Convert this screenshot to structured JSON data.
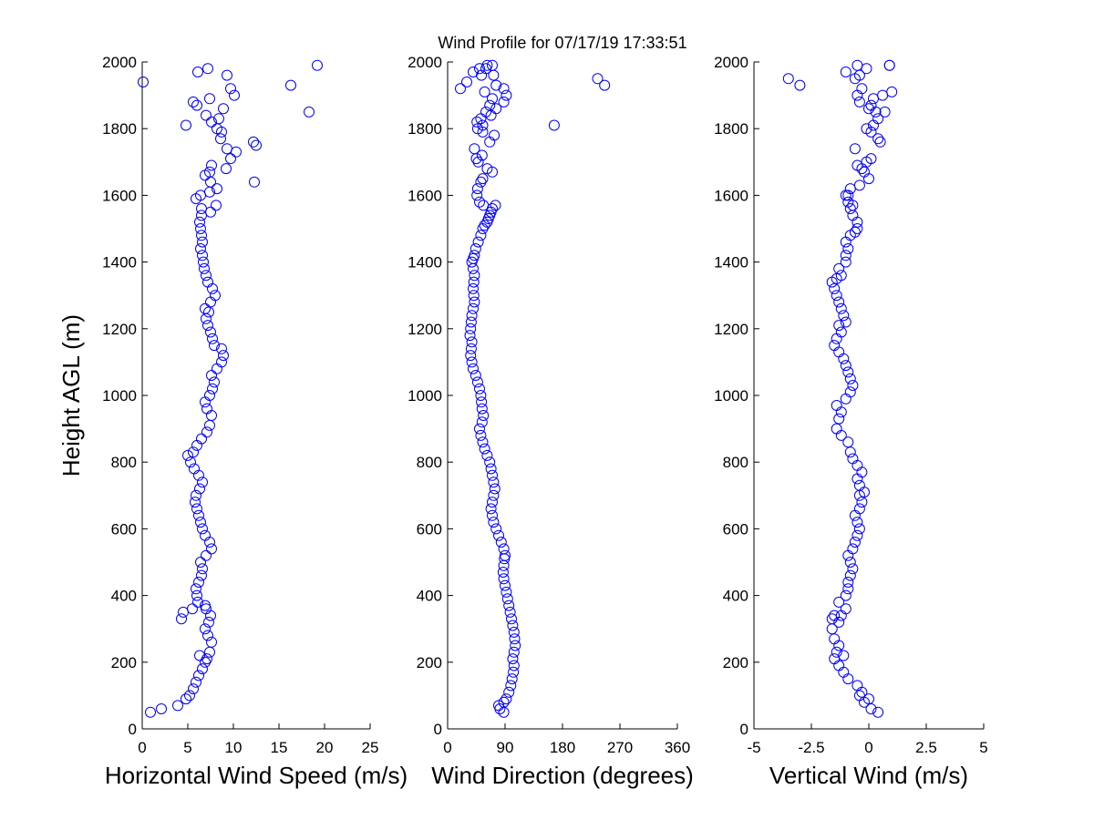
{
  "figure": {
    "title": "Wind Profile for  07/17/19 17:33:51",
    "marker_color": "#0000ff"
  },
  "chart_data": [
    {
      "type": "scatter",
      "title": "Wind Profile for  07/17/19 17:33:51",
      "xlabel": "Horizontal Wind Speed (m/s)",
      "ylabel": "Height AGL (m)",
      "xlim": [
        0,
        25
      ],
      "ylim": [
        0,
        2000
      ],
      "xticks": [
        "0",
        "5",
        "10",
        "15",
        "20",
        "25"
      ],
      "yticks": [
        "0",
        "200",
        "400",
        "600",
        "800",
        "1000",
        "1200",
        "1400",
        "1600",
        "1800",
        "2000"
      ],
      "grid": false,
      "series": [
        {
          "x": [
            0.9,
            2.1,
            3.9,
            4.8,
            5.2,
            5.6,
            5.9,
            6.2,
            6.6,
            6.9,
            7.1,
            7.4,
            7.6,
            7.2,
            6.3,
            6.9,
            7.3,
            7.5,
            7.0,
            6.9,
            4.3,
            4.5,
            5.5,
            6.1,
            6.0,
            5.9,
            6.2,
            6.5,
            6.6,
            6.4,
            7.0,
            7.6,
            7.4,
            6.9,
            6.6,
            6.4,
            6.2,
            6.0,
            5.8,
            5.9,
            6.3,
            6.6,
            6.2,
            5.7,
            5.3,
            5.0,
            5.6,
            6.0,
            6.5,
            7.1,
            7.4,
            7.6,
            7.1,
            6.9,
            7.4,
            7.7,
            7.9,
            7.6,
            8.2,
            8.7,
            8.9,
            8.7,
            7.9,
            7.7,
            7.5,
            7.2,
            7.0,
            7.3,
            6.9,
            7.5,
            8.0,
            7.7,
            7.2,
            7.0,
            6.8,
            6.7,
            6.6,
            6.4,
            6.6,
            6.5,
            6.4,
            6.3,
            6.5,
            7.5,
            6.5,
            5.9,
            6.4,
            8.1,
            7.4,
            8.2,
            7.5,
            6.9,
            7.4,
            7.6,
            9.2,
            12.3,
            9.7,
            10.3,
            9.3,
            12.5,
            12.2,
            8.6,
            8.7,
            8.2,
            4.8,
            7.6,
            8.4,
            7.0,
            8.9,
            6.0,
            5.6,
            7.4,
            18.3,
            10.1,
            9.7,
            16.3,
            0.1,
            9.3,
            6.1,
            7.2,
            19.2
          ],
          "y": [
            50,
            60,
            70,
            90,
            100,
            120,
            140,
            160,
            180,
            200,
            210,
            230,
            260,
            280,
            220,
            300,
            320,
            340,
            360,
            370,
            330,
            350,
            360,
            380,
            400,
            420,
            440,
            460,
            480,
            500,
            520,
            540,
            560,
            580,
            600,
            620,
            640,
            660,
            680,
            700,
            720,
            740,
            760,
            780,
            800,
            820,
            830,
            850,
            870,
            890,
            910,
            940,
            960,
            980,
            1000,
            1020,
            1040,
            1060,
            1080,
            1100,
            1120,
            1140,
            1150,
            1170,
            1190,
            1210,
            1230,
            1250,
            1260,
            1280,
            1300,
            1320,
            1340,
            1360,
            1380,
            1400,
            1420,
            1440,
            1460,
            1480,
            1500,
            1520,
            1540,
            1550,
            1560,
            1590,
            1600,
            1570,
            1610,
            1620,
            1640,
            1660,
            1670,
            1690,
            1680,
            1640,
            1710,
            1730,
            1740,
            1750,
            1760,
            1770,
            1790,
            1800,
            1810,
            1820,
            1830,
            1840,
            1860,
            1870,
            1880,
            1890,
            1850,
            1900,
            1920,
            1930,
            1940,
            1960,
            1970,
            1980,
            1990
          ]
        }
      ]
    },
    {
      "type": "scatter",
      "xlabel": "Wind Direction (degrees)",
      "ylabel": "",
      "xlim": [
        0,
        360
      ],
      "ylim": [
        0,
        2000
      ],
      "xticks": [
        "0",
        "90",
        "180",
        "270",
        "360"
      ],
      "yticks": [
        "0",
        "200",
        "400",
        "600",
        "800",
        "1000",
        "1200",
        "1400",
        "1600",
        "1800",
        "2000"
      ],
      "grid": false,
      "series": [
        {
          "x": [
            88,
            82,
            80,
            88,
            92,
            96,
            99,
            101,
            103,
            104,
            102,
            104,
            106,
            105,
            104,
            102,
            100,
            98,
            96,
            94,
            92,
            90,
            88,
            87,
            88,
            89,
            90,
            88,
            84,
            80,
            76,
            72,
            70,
            68,
            70,
            72,
            74,
            72,
            70,
            68,
            66,
            62,
            58,
            55,
            52,
            50,
            54,
            56,
            54,
            53,
            52,
            50,
            47,
            44,
            40,
            38,
            36,
            37,
            38,
            35,
            36,
            37,
            38,
            40,
            42,
            41,
            40,
            41,
            42,
            40,
            38,
            40,
            42,
            44,
            48,
            52,
            55,
            58,
            62,
            64,
            66,
            68,
            70,
            56,
            50,
            46,
            47,
            52,
            75,
            55,
            70,
            62,
            48,
            45,
            54,
            42,
            66,
            73,
            55,
            47,
            55,
            46,
            52,
            167,
            68,
            60,
            76,
            66,
            88,
            70,
            92,
            58,
            88,
            76,
            20,
            235,
            30,
            246,
            40,
            60,
            70,
            53,
            62,
            72,
            50
          ],
          "y": [
            50,
            60,
            70,
            80,
            90,
            110,
            130,
            150,
            170,
            190,
            210,
            230,
            250,
            270,
            290,
            310,
            330,
            350,
            370,
            390,
            410,
            430,
            450,
            470,
            490,
            510,
            520,
            540,
            560,
            580,
            600,
            620,
            640,
            660,
            680,
            700,
            720,
            740,
            760,
            780,
            800,
            820,
            840,
            860,
            880,
            900,
            920,
            940,
            960,
            980,
            1000,
            1020,
            1040,
            1060,
            1080,
            1100,
            1120,
            1140,
            1160,
            1180,
            1200,
            1220,
            1240,
            1260,
            1280,
            1300,
            1320,
            1340,
            1360,
            1380,
            1400,
            1410,
            1420,
            1440,
            1460,
            1480,
            1500,
            1510,
            1520,
            1530,
            1540,
            1550,
            1560,
            1570,
            1580,
            1600,
            1620,
            1640,
            1570,
            1650,
            1670,
            1680,
            1700,
            1710,
            1720,
            1740,
            1760,
            1780,
            1790,
            1800,
            1810,
            1820,
            1830,
            1810,
            1840,
            1850,
            1860,
            1870,
            1880,
            1890,
            1900,
            1910,
            1920,
            1930,
            1920,
            1950,
            1940,
            1930,
            1970,
            1980,
            1990,
            1960,
            1990,
            1960,
            1980
          ]
        }
      ]
    },
    {
      "type": "scatter",
      "xlabel": "Vertical Wind (m/s)",
      "ylabel": "",
      "xlim": [
        -5,
        5
      ],
      "ylim": [
        0,
        2000
      ],
      "xticks": [
        "-5",
        "-2.5",
        "0",
        "2.5",
        "5"
      ],
      "yticks": [
        "0",
        "200",
        "400",
        "600",
        "800",
        "1000",
        "1200",
        "1400",
        "1600",
        "1800",
        "2000"
      ],
      "grid": false,
      "series": [
        {
          "x": [
            0.4,
            0.1,
            0,
            -0.2,
            -0.4,
            -0.3,
            -0.5,
            -0.9,
            -1.1,
            -1.3,
            -1.5,
            -1.4,
            -1.3,
            -1.5,
            -1.1,
            -1.6,
            -1.3,
            -1.2,
            -1.0,
            -1.3,
            -1.5,
            -1.6,
            -1.0,
            -0.9,
            -0.9,
            -0.8,
            -0.7,
            -0.8,
            -0.9,
            -0.7,
            -0.6,
            -0.5,
            -0.4,
            -0.5,
            -0.6,
            -0.4,
            -0.3,
            -0.4,
            -0.2,
            -0.4,
            -0.5,
            -0.3,
            -0.5,
            -0.7,
            -0.8,
            -0.9,
            -1.2,
            -1.4,
            -1.3,
            -1.2,
            -1.4,
            -1.0,
            -0.8,
            -0.7,
            -0.8,
            -0.9,
            -1.0,
            -1.1,
            -1.3,
            -1.5,
            -1.4,
            -1.2,
            -1.3,
            -1.0,
            -1.1,
            -1.2,
            -1.3,
            -1.4,
            -1.5,
            -1.6,
            -1.4,
            -1.2,
            -1.3,
            -1.0,
            -1.0,
            -0.9,
            -1.0,
            -0.8,
            -0.6,
            -0.5,
            -0.5,
            -0.7,
            -0.8,
            -0.9,
            -1.0,
            -0.7,
            -0.9,
            -0.8,
            -0.4,
            0,
            -0.2,
            -0.5,
            -0.3,
            -0.1,
            0.1,
            -0.6,
            0.5,
            0.4,
            0.1,
            0.2,
            0.4,
            -0.1,
            0.3,
            0,
            0.1,
            0.2,
            -0.5,
            -0.4,
            -0.3,
            -0.6,
            0.9,
            1.0,
            0.6,
            0.7,
            -0.4,
            -3.5,
            -3.0,
            -0.1,
            -1.0,
            -0.5,
            0.9
          ],
          "y": [
            50,
            60,
            90,
            80,
            100,
            110,
            130,
            150,
            170,
            190,
            210,
            230,
            250,
            270,
            220,
            300,
            320,
            340,
            360,
            380,
            340,
            330,
            400,
            420,
            440,
            460,
            480,
            500,
            520,
            540,
            560,
            580,
            600,
            620,
            640,
            660,
            680,
            700,
            710,
            730,
            750,
            770,
            790,
            810,
            830,
            860,
            880,
            900,
            930,
            950,
            970,
            990,
            1010,
            1030,
            1050,
            1070,
            1090,
            1110,
            1130,
            1150,
            1170,
            1190,
            1210,
            1220,
            1240,
            1260,
            1280,
            1300,
            1320,
            1340,
            1350,
            1360,
            1380,
            1400,
            1420,
            1440,
            1460,
            1480,
            1490,
            1500,
            1520,
            1540,
            1560,
            1580,
            1600,
            1570,
            1600,
            1620,
            1630,
            1650,
            1670,
            1690,
            1680,
            1700,
            1710,
            1740,
            1760,
            1770,
            1790,
            1810,
            1830,
            1800,
            1850,
            1860,
            1870,
            1890,
            1900,
            1880,
            1920,
            1950,
            1990,
            1910,
            1900,
            1850,
            1960,
            1950,
            1930,
            1980,
            1970,
            1990,
            1990
          ]
        }
      ]
    }
  ]
}
